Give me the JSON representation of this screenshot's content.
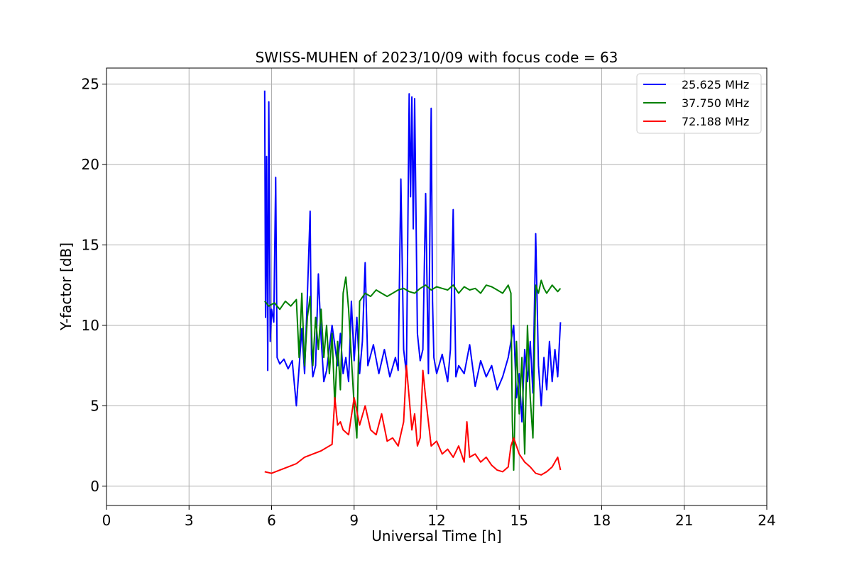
{
  "chart_data": {
    "type": "line",
    "title": "SWISS-MUHEN of 2023/10/09 with focus code = 63",
    "xlabel": "Universal Time [h]",
    "ylabel": "Y-factor [dB]",
    "xlim": [
      0,
      24
    ],
    "ylim": [
      -1.2,
      26
    ],
    "xticks": [
      0,
      3,
      6,
      9,
      12,
      15,
      18,
      21,
      24
    ],
    "yticks": [
      0,
      5,
      10,
      15,
      20,
      25
    ],
    "grid": true,
    "legend_position": "top-right",
    "series": [
      {
        "name": "25.625 MHz",
        "color": "#0000ff",
        "x": [
          5.75,
          5.78,
          5.82,
          5.86,
          5.9,
          5.95,
          6.0,
          6.08,
          6.15,
          6.2,
          6.3,
          6.45,
          6.6,
          6.75,
          6.9,
          7.0,
          7.1,
          7.2,
          7.3,
          7.4,
          7.45,
          7.5,
          7.6,
          7.7,
          7.8,
          7.9,
          8.0,
          8.2,
          8.4,
          8.5,
          8.6,
          8.7,
          8.8,
          8.9,
          9.0,
          9.1,
          9.2,
          9.3,
          9.4,
          9.5,
          9.7,
          9.9,
          10.1,
          10.3,
          10.5,
          10.6,
          10.7,
          10.8,
          10.9,
          11.0,
          11.05,
          11.1,
          11.15,
          11.2,
          11.3,
          11.4,
          11.5,
          11.6,
          11.7,
          11.8,
          11.85,
          11.9,
          12.0,
          12.2,
          12.4,
          12.5,
          12.6,
          12.7,
          12.8,
          13.0,
          13.2,
          13.4,
          13.6,
          13.8,
          14.0,
          14.2,
          14.4,
          14.6,
          14.8,
          14.9,
          15.0,
          15.1,
          15.2,
          15.3,
          15.4,
          15.5,
          15.6,
          15.7,
          15.8,
          15.9,
          16.0,
          16.1,
          16.2,
          16.3,
          16.4,
          16.5
        ],
        "y": [
          24.6,
          10.5,
          20.5,
          7.2,
          23.9,
          9.0,
          11.0,
          10.2,
          19.2,
          8.0,
          7.6,
          7.9,
          7.3,
          7.8,
          5.0,
          7.4,
          9.8,
          7.0,
          11.8,
          17.1,
          8.2,
          6.8,
          7.5,
          13.2,
          9.2,
          6.5,
          7.2,
          10.0,
          7.5,
          9.5,
          7.0,
          8.0,
          6.5,
          11.5,
          7.8,
          10.5,
          7.0,
          9.0,
          13.9,
          7.5,
          8.8,
          7.0,
          8.5,
          6.8,
          8.0,
          7.2,
          19.1,
          8.5,
          7.0,
          24.4,
          18.0,
          24.2,
          16.0,
          24.1,
          9.5,
          7.8,
          8.5,
          18.2,
          7.0,
          23.5,
          11.5,
          8.0,
          7.0,
          8.2,
          6.5,
          8.5,
          17.2,
          6.8,
          7.5,
          7.0,
          8.8,
          6.2,
          7.8,
          6.8,
          7.5,
          6.0,
          6.8,
          8.0,
          10.0,
          5.5,
          7.0,
          4.0,
          8.5,
          6.5,
          9.0,
          5.8,
          15.7,
          7.5,
          5.0,
          8.0,
          6.0,
          9.0,
          6.5,
          8.5,
          6.8,
          10.2
        ]
      },
      {
        "name": "37.750 MHz",
        "color": "#008000",
        "x": [
          5.75,
          5.9,
          6.1,
          6.3,
          6.5,
          6.7,
          6.9,
          7.0,
          7.1,
          7.2,
          7.3,
          7.4,
          7.5,
          7.6,
          7.7,
          7.8,
          7.9,
          8.0,
          8.1,
          8.2,
          8.3,
          8.4,
          8.5,
          8.6,
          8.7,
          8.8,
          8.9,
          9.0,
          9.1,
          9.2,
          9.4,
          9.6,
          9.8,
          10.0,
          10.2,
          10.4,
          10.6,
          10.8,
          11.0,
          11.2,
          11.4,
          11.6,
          11.8,
          12.0,
          12.2,
          12.4,
          12.6,
          12.8,
          13.0,
          13.2,
          13.4,
          13.6,
          13.8,
          14.0,
          14.2,
          14.4,
          14.6,
          14.7,
          14.75,
          14.8,
          14.9,
          15.0,
          15.1,
          15.2,
          15.3,
          15.4,
          15.5,
          15.6,
          15.7,
          15.8,
          15.9,
          16.0,
          16.2,
          16.4,
          16.5
        ],
        "y": [
          11.5,
          11.2,
          11.4,
          11.0,
          11.5,
          11.2,
          11.6,
          8.0,
          12.0,
          7.5,
          10.5,
          11.8,
          7.5,
          10.5,
          8.5,
          11.0,
          8.0,
          10.0,
          7.0,
          9.5,
          5.0,
          9.0,
          6.0,
          12.0,
          13.0,
          11.0,
          8.0,
          5.0,
          3.0,
          11.5,
          12.0,
          11.8,
          12.2,
          12.0,
          11.8,
          12.0,
          12.2,
          12.3,
          12.1,
          12.0,
          12.3,
          12.5,
          12.2,
          12.4,
          12.3,
          12.2,
          12.5,
          12.0,
          12.4,
          12.2,
          12.3,
          12.0,
          12.5,
          12.4,
          12.2,
          12.0,
          12.5,
          12.0,
          4.0,
          1.0,
          9.0,
          4.5,
          8.0,
          2.0,
          10.0,
          5.5,
          3.0,
          12.5,
          12.0,
          12.8,
          12.3,
          12.0,
          12.5,
          12.1,
          12.3
        ]
      },
      {
        "name": "72.188 MHz",
        "color": "#ff0000",
        "x": [
          5.75,
          6.0,
          6.3,
          6.6,
          6.9,
          7.2,
          7.5,
          7.8,
          8.0,
          8.2,
          8.3,
          8.4,
          8.5,
          8.6,
          8.8,
          9.0,
          9.2,
          9.4,
          9.6,
          9.8,
          10.0,
          10.2,
          10.4,
          10.6,
          10.8,
          10.9,
          11.0,
          11.1,
          11.2,
          11.3,
          11.4,
          11.5,
          11.6,
          11.8,
          12.0,
          12.2,
          12.4,
          12.6,
          12.8,
          13.0,
          13.1,
          13.2,
          13.4,
          13.6,
          13.8,
          14.0,
          14.2,
          14.4,
          14.6,
          14.7,
          14.8,
          15.0,
          15.2,
          15.4,
          15.6,
          15.8,
          16.0,
          16.2,
          16.4,
          16.5
        ],
        "y": [
          0.9,
          0.8,
          1.0,
          1.2,
          1.4,
          1.8,
          2.0,
          2.2,
          2.4,
          2.6,
          5.5,
          3.8,
          4.0,
          3.5,
          3.2,
          5.5,
          3.8,
          5.0,
          3.5,
          3.2,
          4.5,
          2.8,
          3.0,
          2.5,
          4.0,
          7.5,
          5.5,
          3.5,
          4.5,
          2.5,
          3.0,
          7.2,
          5.5,
          2.5,
          2.8,
          2.0,
          2.3,
          1.8,
          2.5,
          1.5,
          4.0,
          1.8,
          2.0,
          1.5,
          1.8,
          1.3,
          1.0,
          0.9,
          1.2,
          2.5,
          3.0,
          2.0,
          1.5,
          1.2,
          0.8,
          0.7,
          0.9,
          1.2,
          1.8,
          1.0
        ]
      }
    ]
  }
}
